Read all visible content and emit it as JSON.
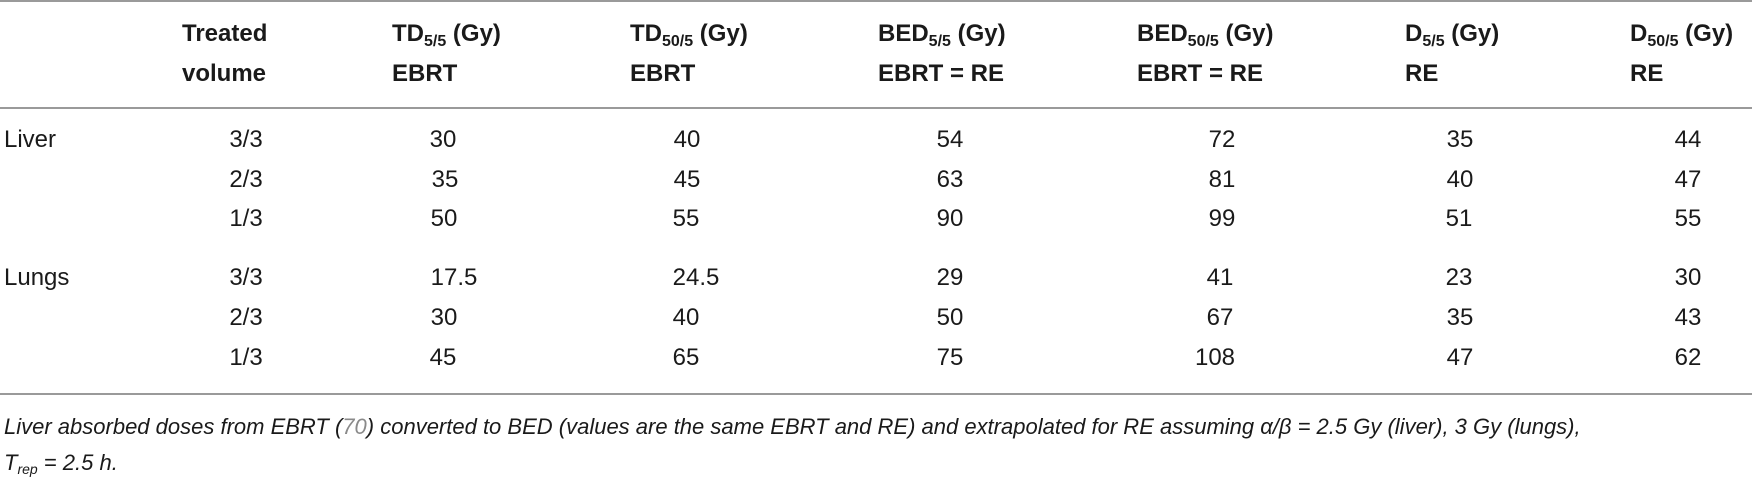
{
  "table": {
    "headers": [
      {
        "line1_main": "Treated",
        "line1_sub": "",
        "line1_tail": "",
        "line2": "volume"
      },
      {
        "line1_main": "TD",
        "line1_sub": "5/5",
        "line1_tail": " (Gy)",
        "line2": "EBRT"
      },
      {
        "line1_main": "TD",
        "line1_sub": "50/5",
        "line1_tail": " (Gy)",
        "line2": "EBRT"
      },
      {
        "line1_main": "BED",
        "line1_sub": "5/5",
        "line1_tail": " (Gy)",
        "line2": "EBRT = RE"
      },
      {
        "line1_main": "BED",
        "line1_sub": "50/5",
        "line1_tail": " (Gy)",
        "line2": "EBRT = RE"
      },
      {
        "line1_main": "D",
        "line1_sub": "5/5",
        "line1_tail": " (Gy)",
        "line2": "RE"
      },
      {
        "line1_main": "D",
        "line1_sub": "50/5",
        "line1_tail": " (Gy)",
        "line2": "RE"
      }
    ],
    "groups": [
      {
        "organ": "Liver",
        "rows": [
          [
            "3/3",
            "30",
            "40",
            "54",
            "72",
            "35",
            "44"
          ],
          [
            "2/3",
            "35",
            "45",
            "63",
            "81",
            "40",
            "47"
          ],
          [
            "1/3",
            "50",
            "55",
            "90",
            "99",
            "51",
            "55"
          ]
        ]
      },
      {
        "organ": "Lungs",
        "rows": [
          [
            "3/3",
            "17.5",
            "24.5",
            "29",
            "41",
            "23",
            "30"
          ],
          [
            "2/3",
            "30",
            "40",
            "50",
            "67",
            "35",
            "43"
          ],
          [
            "1/3",
            "45",
            "65",
            "75",
            "108",
            "47",
            "62"
          ]
        ]
      }
    ]
  },
  "footnote": {
    "part1": "Liver absorbed doses from EBRT (",
    "ref": "70",
    "part2": ") converted to BED (values are the same EBRT and RE) and extrapolated for RE assuming α/β = 2.5 Gy (liver), 3 Gy (lungs),",
    "part3_main": "T",
    "part3_sub": "rep",
    "part3_tail": " = 2.5 h."
  }
}
